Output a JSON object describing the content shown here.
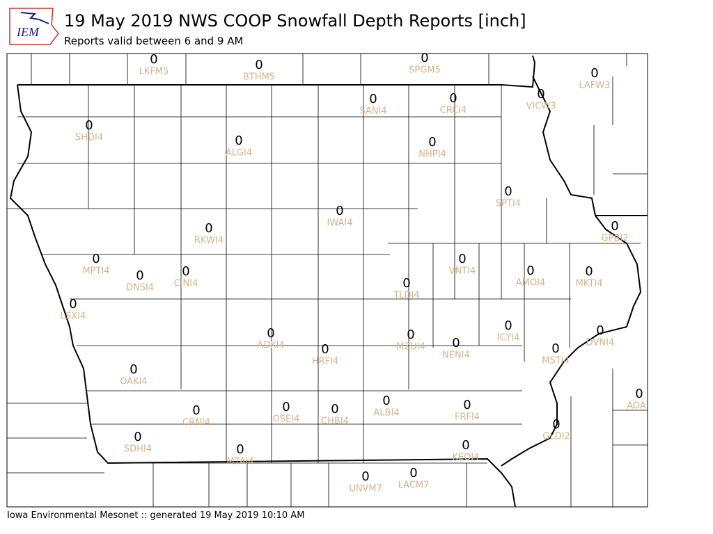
{
  "logo_text": "IEM",
  "header": {
    "title": "19 May 2019 NWS COOP Snowfall Depth Reports [inch]",
    "subtitle": "Reports valid between 6 and 9 AM"
  },
  "footer": "Iowa Environmental Mesonet :: generated 19 May 2019 10:10 AM",
  "stations": [
    {
      "id": "LKFM5",
      "value": 0
    },
    {
      "id": "BTHM5",
      "value": 0
    },
    {
      "id": "SPGM5",
      "value": 0
    },
    {
      "id": "LAFW3",
      "value": 0
    },
    {
      "id": "SANI4",
      "value": 0
    },
    {
      "id": "CRCI4",
      "value": 0
    },
    {
      "id": "VICW3",
      "value": 0
    },
    {
      "id": "SHDI4",
      "value": 0
    },
    {
      "id": "ALGI4",
      "value": 0
    },
    {
      "id": "NHPI4",
      "value": 0
    },
    {
      "id": "SPTI4",
      "value": 0
    },
    {
      "id": "IWAI4",
      "value": 0
    },
    {
      "id": "RKWI4",
      "value": 0
    },
    {
      "id": "GPBI2",
      "value": 0
    },
    {
      "id": "MPTI4",
      "value": 0
    },
    {
      "id": "VNTI4",
      "value": 0
    },
    {
      "id": "AMOI4",
      "value": 0
    },
    {
      "id": "DNSI4",
      "value": 0
    },
    {
      "id": "CINI4",
      "value": 0
    },
    {
      "id": "MKTI4",
      "value": 0
    },
    {
      "id": "TLDI4",
      "value": 0
    },
    {
      "id": "LSXI4",
      "value": 0
    },
    {
      "id": "ICYI4",
      "value": 0
    },
    {
      "id": "ADKI4",
      "value": 0
    },
    {
      "id": "DVNI4",
      "value": 0
    },
    {
      "id": "MZUI4",
      "value": 0
    },
    {
      "id": "NENI4",
      "value": 0
    },
    {
      "id": "HRFI4",
      "value": 0
    },
    {
      "id": "MSTI4",
      "value": 0
    },
    {
      "id": "OAKI4",
      "value": 0
    },
    {
      "id": "AOA",
      "value": 0
    },
    {
      "id": "ALBI4",
      "value": 0
    },
    {
      "id": "FRFI4",
      "value": 0
    },
    {
      "id": "CRNI4",
      "value": 0
    },
    {
      "id": "OSEI4",
      "value": 0
    },
    {
      "id": "CHBI4",
      "value": 0
    },
    {
      "id": "GLDI2",
      "value": 0
    },
    {
      "id": "SDHI4",
      "value": 0
    },
    {
      "id": "KEOI4",
      "value": 0
    },
    {
      "id": "MTAI4",
      "value": 0
    },
    {
      "id": "UNVM7",
      "value": 0
    },
    {
      "id": "LACM7",
      "value": 0
    }
  ]
}
